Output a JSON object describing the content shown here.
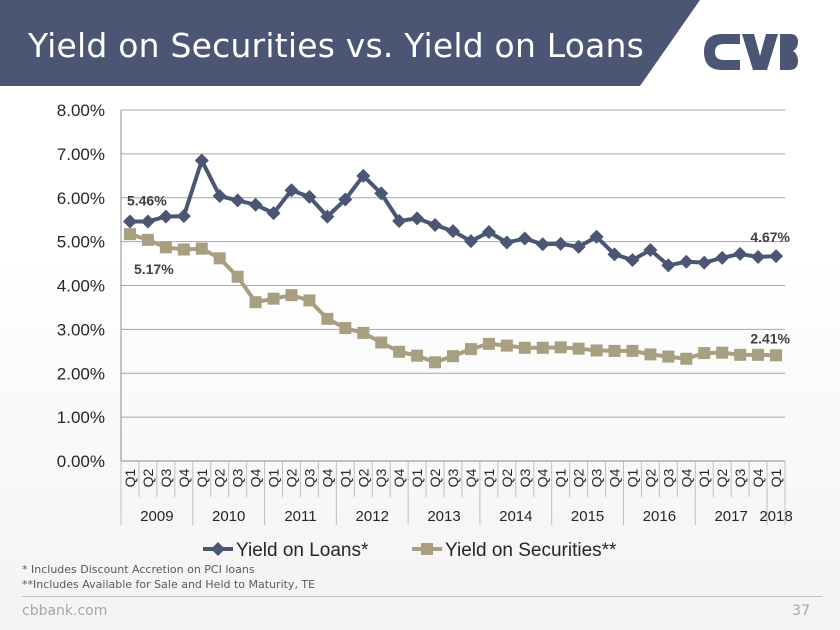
{
  "slide": {
    "title": "Yield on Securities vs. Yield on Loans",
    "footnotes": [
      "* Includes Discount Accretion on PCI loans",
      "**Includes Available for Sale and Held to Maturity, TE"
    ],
    "site": "cbbank.com",
    "page_number": "37",
    "brand_color": "#4b5574"
  },
  "chart_data": {
    "type": "line",
    "title": "",
    "ylim": [
      0,
      8
    ],
    "y_ticks": [
      "0.00%",
      "1.00%",
      "2.00%",
      "3.00%",
      "4.00%",
      "5.00%",
      "6.00%",
      "7.00%",
      "8.00%"
    ],
    "grid": true,
    "legend_position": "bottom",
    "categories": [
      "Q1",
      "Q2",
      "Q3",
      "Q4",
      "Q1",
      "Q2",
      "Q3",
      "Q4",
      "Q1",
      "Q2",
      "Q3",
      "Q4",
      "Q1",
      "Q2",
      "Q3",
      "Q4",
      "Q1",
      "Q2",
      "Q3",
      "Q4",
      "Q1",
      "Q2",
      "Q3",
      "Q4",
      "Q1",
      "Q2",
      "Q3",
      "Q4",
      "Q1",
      "Q2",
      "Q3",
      "Q4",
      "Q1",
      "Q2",
      "Q3",
      "Q4",
      "Q1"
    ],
    "year_groups": [
      {
        "label": "2009",
        "count": 4
      },
      {
        "label": "2010",
        "count": 4
      },
      {
        "label": "2011",
        "count": 4
      },
      {
        "label": "2012",
        "count": 4
      },
      {
        "label": "2013",
        "count": 4
      },
      {
        "label": "2014",
        "count": 4
      },
      {
        "label": "2015",
        "count": 4
      },
      {
        "label": "2016",
        "count": 4
      },
      {
        "label": "2017",
        "count": 4
      },
      {
        "label": "2018",
        "count": 1
      }
    ],
    "series": [
      {
        "name": "Yield on Loans*",
        "color": "#4b5574",
        "marker": "diamond",
        "values": [
          5.46,
          5.46,
          5.57,
          5.58,
          6.85,
          6.04,
          5.94,
          5.84,
          5.65,
          6.17,
          6.02,
          5.57,
          5.96,
          6.5,
          6.1,
          5.47,
          5.53,
          5.38,
          5.24,
          5.01,
          5.22,
          4.98,
          5.07,
          4.94,
          4.95,
          4.88,
          5.11,
          4.71,
          4.58,
          4.81,
          4.46,
          4.54,
          4.52,
          4.63,
          4.72,
          4.65,
          4.67
        ],
        "data_labels": {
          "first": "5.46%",
          "last": "4.67%"
        }
      },
      {
        "name": "Yield on Securities**",
        "color": "#a89e80",
        "marker": "square",
        "values": [
          5.17,
          5.04,
          4.87,
          4.82,
          4.84,
          4.62,
          4.2,
          3.62,
          3.7,
          3.78,
          3.66,
          3.24,
          3.03,
          2.92,
          2.7,
          2.49,
          2.4,
          2.25,
          2.39,
          2.55,
          2.67,
          2.63,
          2.58,
          2.58,
          2.59,
          2.56,
          2.52,
          2.51,
          2.51,
          2.43,
          2.38,
          2.33,
          2.46,
          2.47,
          2.42,
          2.42,
          2.41
        ],
        "data_labels": {
          "first": "5.17%",
          "last": "2.41%"
        }
      }
    ]
  }
}
